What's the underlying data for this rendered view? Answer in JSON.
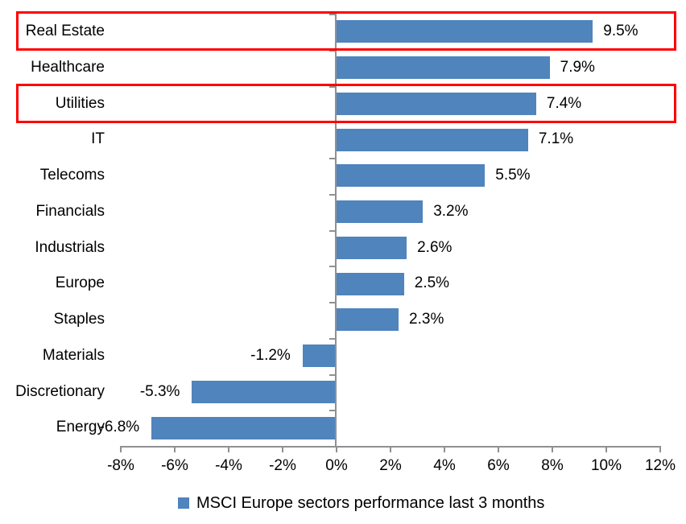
{
  "chart_data": {
    "type": "bar",
    "orientation": "horizontal",
    "title": "",
    "legend": "MSCI Europe sectors performance last 3 months",
    "legend_position": "bottom-center",
    "categories": [
      "Real Estate",
      "Healthcare",
      "Utilities",
      "IT",
      "Telecoms",
      "Financials",
      "Industrials",
      "Europe",
      "Staples",
      "Materials",
      "Discretionary",
      "Energy"
    ],
    "values": [
      9.5,
      7.9,
      7.4,
      7.1,
      5.5,
      3.2,
      2.6,
      2.5,
      2.3,
      -1.2,
      -5.3,
      -6.8
    ],
    "value_labels": [
      "9.5%",
      "7.9%",
      "7.4%",
      "7.1%",
      "5.5%",
      "3.2%",
      "2.6%",
      "2.5%",
      "2.3%",
      "-1.2%",
      "-5.3%",
      "-6.8%"
    ],
    "x_ticks": [
      "-8%",
      "-6%",
      "-4%",
      "-2%",
      "0%",
      "2%",
      "4%",
      "6%",
      "8%",
      "10%",
      "12%"
    ],
    "xlim": [
      -8,
      12
    ],
    "x_tick_step": 2,
    "grid": "off",
    "highlighted_categories": [
      "Real Estate",
      "Utilities"
    ],
    "colors": {
      "bar": "#4f84bc",
      "axis": "#8e9093",
      "highlight": "#ff0000",
      "text": "#000000",
      "background": "#ffffff"
    }
  }
}
